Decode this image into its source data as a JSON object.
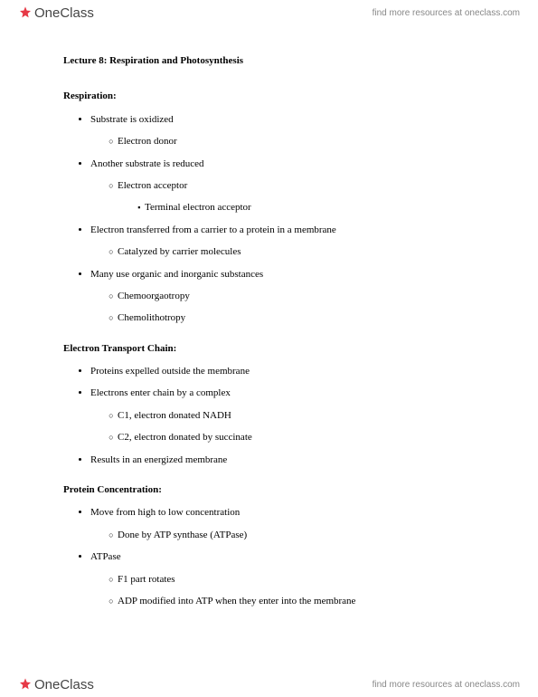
{
  "brand": {
    "logo_text": "OneClass",
    "tagline": "find more resources at oneclass.com"
  },
  "doc": {
    "title": "Lecture 8: Respiration and Photosynthesis",
    "sections": [
      {
        "heading": "Respiration:",
        "items": [
          {
            "text": "Substrate is oxidized",
            "children": [
              {
                "text": "Electron donor"
              }
            ]
          },
          {
            "text": "Another substrate is reduced",
            "children": [
              {
                "text": "Electron acceptor",
                "children": [
                  {
                    "text": "Terminal electron acceptor"
                  }
                ]
              }
            ]
          },
          {
            "text": "Electron transferred from a carrier to a protein in a membrane",
            "children": [
              {
                "text": "Catalyzed by carrier molecules"
              }
            ]
          },
          {
            "text": "Many use organic and inorganic substances",
            "children": [
              {
                "text": "Chemoorgaotropy"
              },
              {
                "text": "Chemolithotropy"
              }
            ]
          }
        ]
      },
      {
        "heading": "Electron Transport Chain:",
        "items": [
          {
            "text": "Proteins expelled outside the membrane"
          },
          {
            "text": "Electrons enter chain by a complex",
            "children": [
              {
                "text": "C1, electron donated NADH"
              },
              {
                "text": "C2, electron donated by succinate"
              }
            ]
          },
          {
            "text": "Results in an energized membrane"
          }
        ]
      },
      {
        "heading": "Protein Concentration:",
        "items": [
          {
            "text": "Move from high to low concentration",
            "children": [
              {
                "text": "Done by ATP synthase (ATPase)"
              }
            ]
          },
          {
            "text": "ATPase",
            "children": [
              {
                "text": "F1 part rotates"
              },
              {
                "text": "ADP modified into ATP when they enter into the membrane"
              }
            ]
          }
        ]
      }
    ]
  },
  "colors": {
    "logo_fill": "#e63946",
    "text": "#000000",
    "tagline": "#888888"
  }
}
